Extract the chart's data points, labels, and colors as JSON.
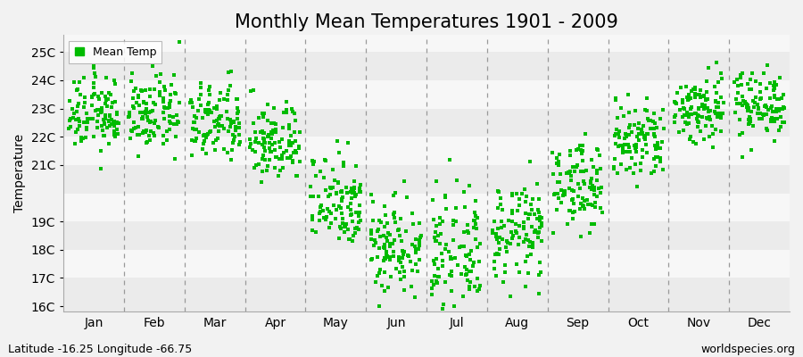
{
  "title": "Monthly Mean Temperatures 1901 - 2009",
  "ylabel": "Temperature",
  "footnote_left": "Latitude -16.25 Longitude -66.75",
  "footnote_right": "worldspecies.org",
  "legend_label": "Mean Temp",
  "dot_color": "#00bb00",
  "dot_size": 8,
  "ylim": [
    15.8,
    25.6
  ],
  "yticks": [
    16,
    17,
    18,
    19,
    21,
    22,
    23,
    24,
    25
  ],
  "ytick_labels": [
    "16C",
    "17C",
    "18C",
    "19C",
    "21C",
    "22C",
    "23C",
    "24C",
    "25C"
  ],
  "months": [
    "Jan",
    "Feb",
    "Mar",
    "Apr",
    "May",
    "Jun",
    "Jul",
    "Aug",
    "Sep",
    "Oct",
    "Nov",
    "Dec"
  ],
  "month_mean_temps": [
    22.8,
    22.8,
    22.5,
    21.8,
    19.8,
    18.2,
    17.8,
    18.6,
    20.3,
    21.8,
    23.0,
    23.2
  ],
  "month_std_temps": [
    0.65,
    0.65,
    0.7,
    0.7,
    0.85,
    0.9,
    1.0,
    0.85,
    0.75,
    0.75,
    0.65,
    0.6
  ],
  "n_years": 109,
  "bg_color": "#f2f2f2",
  "strip_light": "#f7f7f7",
  "strip_dark": "#ebebeb",
  "grid_color": "#999999",
  "title_fontsize": 15,
  "axis_fontsize": 10,
  "tick_fontsize": 10,
  "footnote_fontsize": 9
}
